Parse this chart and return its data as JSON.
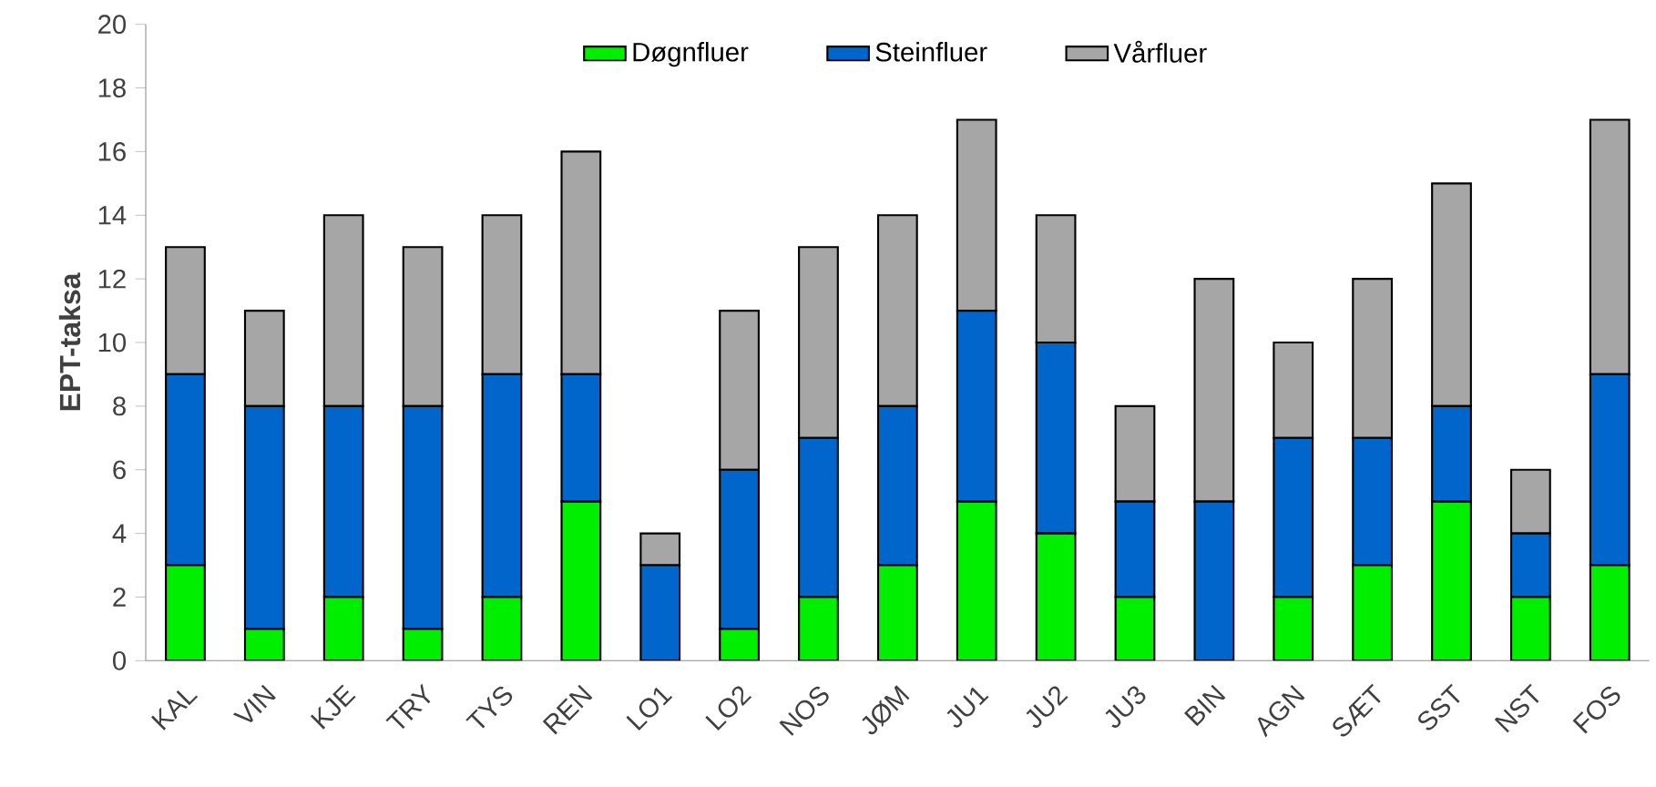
{
  "chart_data": {
    "type": "bar",
    "stacked": true,
    "ylabel": "EPT-taksa",
    "categories": [
      "KAL",
      "VIN",
      "KJE",
      "TRY",
      "TYS",
      "REN",
      "LO1",
      "LO2",
      "NOS",
      "JØM",
      "JU1",
      "JU2",
      "JU3",
      "BIN",
      "AGN",
      "SÆT",
      "SST",
      "NST",
      "FOS"
    ],
    "series": [
      {
        "name": "Døgnfluer",
        "color": "#00ee00",
        "values": [
          3,
          1,
          2,
          1,
          2,
          5,
          0,
          1,
          2,
          3,
          5,
          4,
          2,
          0,
          2,
          3,
          5,
          2,
          3
        ]
      },
      {
        "name": "Steinfluer",
        "color": "#0066cc",
        "values": [
          6,
          7,
          6,
          7,
          7,
          4,
          3,
          5,
          5,
          5,
          6,
          6,
          3,
          5,
          5,
          4,
          3,
          2,
          6
        ]
      },
      {
        "name": "Vårfluer",
        "color": "#a6a6a6",
        "values": [
          4,
          3,
          6,
          5,
          5,
          7,
          1,
          5,
          6,
          6,
          6,
          4,
          3,
          7,
          3,
          5,
          7,
          2,
          8
        ]
      }
    ],
    "ylim": [
      0,
      20
    ],
    "yticks": [
      0,
      2,
      4,
      6,
      8,
      10,
      12,
      14,
      16,
      18,
      20
    ],
    "legend": "top"
  }
}
